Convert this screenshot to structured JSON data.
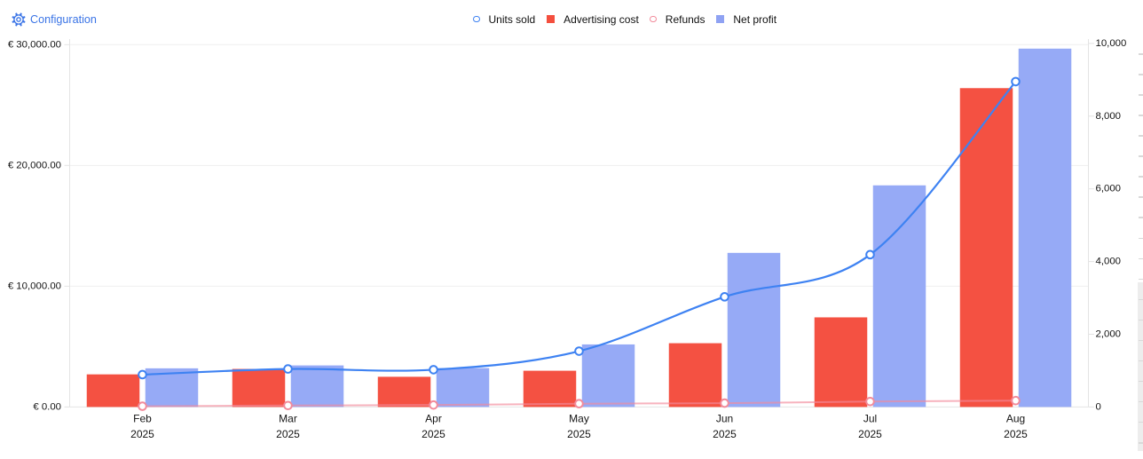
{
  "toolbar": {
    "configuration_label": "Configuration",
    "link_color": "#3a74e6"
  },
  "legend": {
    "items": [
      {
        "label": "Units sold",
        "marker": "circle",
        "color": "#3e82f2"
      },
      {
        "label": "Advertising cost",
        "marker": "square",
        "color": "#f44f3e"
      },
      {
        "label": "Refunds",
        "marker": "circle",
        "color": "#f28b9b"
      },
      {
        "label": "Net profit",
        "marker": "square",
        "color": "#8fa2f3"
      }
    ]
  },
  "chart_data": {
    "type": "combo-bar-line",
    "categories": [
      {
        "month": "Feb",
        "year": "2025"
      },
      {
        "month": "Mar",
        "year": "2025"
      },
      {
        "month": "Apr",
        "year": "2025"
      },
      {
        "month": "May",
        "year": "2025"
      },
      {
        "month": "Jun",
        "year": "2025"
      },
      {
        "month": "Jul",
        "year": "2025"
      },
      {
        "month": "Aug",
        "year": "2025"
      }
    ],
    "series": [
      {
        "name": "Advertising cost",
        "type": "bar",
        "axis": "left",
        "color": "#f45142",
        "values": [
          2700,
          3150,
          2500,
          3000,
          5280,
          7420,
          26400
        ]
      },
      {
        "name": "Net profit",
        "type": "bar",
        "axis": "left",
        "color": "#96aaf6",
        "values": [
          3200,
          3440,
          3220,
          5180,
          12760,
          18350,
          29670
        ]
      },
      {
        "name": "Refunds",
        "type": "line",
        "axis": "right",
        "color": "#f28b9b",
        "line_opacity": 0.65,
        "values": [
          20,
          40,
          55,
          90,
          105,
          150,
          175
        ]
      },
      {
        "name": "Units sold",
        "type": "line",
        "axis": "right",
        "color": "#3e82f2",
        "line_opacity": 1,
        "values": [
          890,
          1045,
          1025,
          1535,
          3030,
          4190,
          8950
        ]
      }
    ],
    "left_axis": {
      "min": 0,
      "max": 30000,
      "tick_values": [
        0,
        10000,
        20000,
        30000
      ],
      "tick_labels": [
        "€ 0.00",
        "€ 10,000.00",
        "€ 20,000.00",
        "€ 30,000.00"
      ]
    },
    "right_axis": {
      "min": 0,
      "max": 10000,
      "tick_values": [
        0,
        2000,
        4000,
        6000,
        8000,
        10000
      ],
      "tick_labels": [
        "0",
        "2,000",
        "4,000",
        "6,000",
        "8,000",
        "10,000"
      ]
    },
    "grid": "horizontal-left-axis-only",
    "legend_position": "top-center"
  },
  "colors": {
    "grid_line": "#efefef",
    "axis_line": "#e4e4e4",
    "axis_text": "#141414",
    "marker_fill": "#ffffff",
    "edge_tick": "#d9d9d9",
    "edge_strip": "#ededed"
  }
}
